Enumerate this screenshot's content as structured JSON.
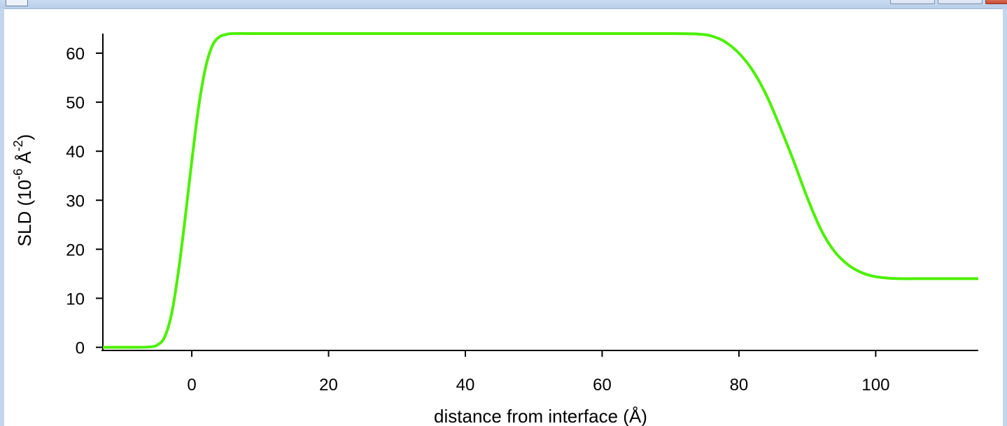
{
  "window": {
    "title": "",
    "buttons": [
      "minimize",
      "maximize",
      "close"
    ]
  },
  "chart_data": {
    "type": "line",
    "xlabel": "distance from interface (Å)",
    "ylabel": "SLD (10<sup>-6</sup> Å<sup>-2</sup>)",
    "ylabel_parts": {
      "prefix": "SLD (10",
      "exp1": "-6",
      "mid": " Å",
      "exp2": "-2",
      "suffix": ")"
    },
    "xlim": [
      -13,
      115
    ],
    "ylim": [
      -0.5,
      64
    ],
    "x_ticks": [
      0,
      20,
      40,
      60,
      80,
      100
    ],
    "y_ticks": [
      0,
      10,
      20,
      30,
      40,
      50,
      60
    ],
    "x_tick_labels": [
      "0",
      "20",
      "40",
      "60",
      "80",
      "100"
    ],
    "y_tick_labels": [
      "0",
      "10",
      "20",
      "30",
      "40",
      "50",
      "60"
    ],
    "grid": false,
    "series": [
      {
        "color": "#4cf000",
        "x": [
          -13,
          -8,
          -6,
          -5,
          -4,
          -3,
          -2,
          -1,
          0,
          1,
          2,
          3,
          4,
          5,
          6,
          10,
          20,
          40,
          60,
          70,
          74,
          76,
          78,
          80,
          82,
          84,
          86,
          88,
          90,
          92,
          94,
          96,
          98,
          100,
          102,
          104,
          106,
          110,
          115
        ],
        "y": [
          0,
          0,
          0.1,
          0.5,
          2,
          6.5,
          15,
          26,
          38,
          49,
          57,
          61.5,
          63.3,
          63.8,
          64,
          64,
          64,
          64,
          64,
          64,
          63.9,
          63.5,
          62.3,
          60,
          56.5,
          51.5,
          45,
          38,
          30.5,
          24,
          19.5,
          16.8,
          15.2,
          14.4,
          14.1,
          14,
          14,
          14,
          14
        ]
      }
    ]
  }
}
